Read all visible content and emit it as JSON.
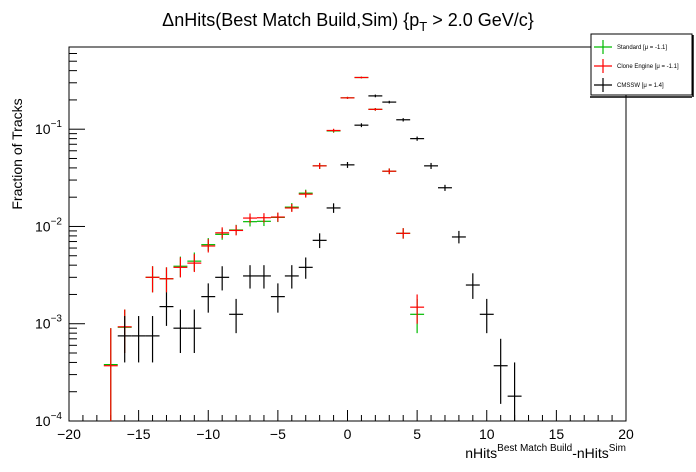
{
  "chart_data": {
    "type": "scatter",
    "title_parts": {
      "pre": "ΔnHits(Best Match Build,Sim) {p",
      "sub": "T",
      "post": " > 2.0 GeV/c}"
    },
    "ylabel": "Fraction of Tracks",
    "xlabel_parts": {
      "a": "nHits",
      "a_sup": "Best Match Build",
      "b": "-nHits",
      "b_sup": "Sim"
    },
    "xlim": [
      -20,
      20
    ],
    "ylim": [
      0.0001,
      0.7
    ],
    "y_scale": "log",
    "x_ticks": [
      -20,
      -15,
      -10,
      -5,
      0,
      5,
      10,
      15,
      20
    ],
    "x_tick_labels": [
      "−20",
      "−15",
      "−10",
      "−5",
      "0",
      "5",
      "10",
      "15",
      "20"
    ],
    "y_tick_labels": [
      {
        "value": 0.0001,
        "base": "10",
        "exp": "−4"
      },
      {
        "value": 0.001,
        "base": "10",
        "exp": "−3"
      },
      {
        "value": 0.01,
        "base": "10",
        "exp": "−2"
      },
      {
        "value": 0.1,
        "base": "10",
        "exp": "−1"
      }
    ],
    "grid": false,
    "legend_position": "top-right",
    "series": [
      {
        "name": "Standard",
        "legend_stat": "[μ = -1.1]",
        "color": "#00bb00",
        "points": [
          {
            "x": -17,
            "y": 0.00038,
            "lo": 0.0001,
            "hi": 0.0009
          },
          {
            "x": -16,
            "y": 0.00092,
            "lo": 0.0005,
            "hi": 0.0014
          },
          {
            "x": -14,
            "y": 0.003,
            "lo": 0.0021,
            "hi": 0.0039
          },
          {
            "x": -13,
            "y": 0.0029,
            "lo": 0.0021,
            "hi": 0.0038
          },
          {
            "x": -12,
            "y": 0.0039,
            "lo": 0.003,
            "hi": 0.0049
          },
          {
            "x": -11,
            "y": 0.0044,
            "lo": 0.0035,
            "hi": 0.0054
          },
          {
            "x": -10,
            "y": 0.0065,
            "lo": 0.0056,
            "hi": 0.0076
          },
          {
            "x": -9,
            "y": 0.0083,
            "lo": 0.0073,
            "hi": 0.0095
          },
          {
            "x": -8,
            "y": 0.0092,
            "lo": 0.0082,
            "hi": 0.0104
          },
          {
            "x": -7,
            "y": 0.0112,
            "lo": 0.01,
            "hi": 0.0126
          },
          {
            "x": -6,
            "y": 0.0113,
            "lo": 0.0101,
            "hi": 0.0127
          },
          {
            "x": -5,
            "y": 0.0124,
            "lo": 0.0111,
            "hi": 0.0138
          },
          {
            "x": -4,
            "y": 0.0158,
            "lo": 0.0144,
            "hi": 0.0174
          },
          {
            "x": -3,
            "y": 0.022,
            "lo": 0.0203,
            "hi": 0.0239
          },
          {
            "x": -2,
            "y": 0.042,
            "lo": 0.039,
            "hi": 0.045
          },
          {
            "x": -1,
            "y": 0.096,
            "lo": 0.092,
            "hi": 0.1
          },
          {
            "x": 0,
            "y": 0.21,
            "lo": 0.205,
            "hi": 0.215
          },
          {
            "x": 1,
            "y": 0.34,
            "lo": 0.333,
            "hi": 0.347
          },
          {
            "x": 2,
            "y": 0.16,
            "lo": 0.155,
            "hi": 0.165
          },
          {
            "x": 3,
            "y": 0.037,
            "lo": 0.0345,
            "hi": 0.0395
          },
          {
            "x": 4,
            "y": 0.0085,
            "lo": 0.0075,
            "hi": 0.0096
          },
          {
            "x": 5,
            "y": 0.00125,
            "lo": 0.0008,
            "hi": 0.0018
          }
        ]
      },
      {
        "name": "Clone Engine",
        "legend_stat": "[μ = -1.1]",
        "color": "#ff0000",
        "points": [
          {
            "x": -17,
            "y": 0.00037,
            "lo": 0.0001,
            "hi": 0.0009
          },
          {
            "x": -16,
            "y": 0.00093,
            "lo": 0.0005,
            "hi": 0.0014
          },
          {
            "x": -14,
            "y": 0.003,
            "lo": 0.0021,
            "hi": 0.0039
          },
          {
            "x": -13,
            "y": 0.0029,
            "lo": 0.0021,
            "hi": 0.0038
          },
          {
            "x": -12,
            "y": 0.0038,
            "lo": 0.003,
            "hi": 0.0048
          },
          {
            "x": -11,
            "y": 0.0042,
            "lo": 0.0034,
            "hi": 0.0052
          },
          {
            "x": -10,
            "y": 0.0063,
            "lo": 0.0054,
            "hi": 0.0074
          },
          {
            "x": -9,
            "y": 0.0086,
            "lo": 0.0076,
            "hi": 0.0098
          },
          {
            "x": -8,
            "y": 0.0091,
            "lo": 0.0081,
            "hi": 0.0103
          },
          {
            "x": -7,
            "y": 0.0122,
            "lo": 0.0109,
            "hi": 0.0136
          },
          {
            "x": -6,
            "y": 0.0123,
            "lo": 0.011,
            "hi": 0.0137
          },
          {
            "x": -5,
            "y": 0.0125,
            "lo": 0.0112,
            "hi": 0.0139
          },
          {
            "x": -4,
            "y": 0.0155,
            "lo": 0.0141,
            "hi": 0.017
          },
          {
            "x": -3,
            "y": 0.0215,
            "lo": 0.0198,
            "hi": 0.0234
          },
          {
            "x": -2,
            "y": 0.042,
            "lo": 0.039,
            "hi": 0.045
          },
          {
            "x": -1,
            "y": 0.097,
            "lo": 0.093,
            "hi": 0.101
          },
          {
            "x": 0,
            "y": 0.21,
            "lo": 0.205,
            "hi": 0.215
          },
          {
            "x": 1,
            "y": 0.34,
            "lo": 0.333,
            "hi": 0.347
          },
          {
            "x": 2,
            "y": 0.16,
            "lo": 0.155,
            "hi": 0.165
          },
          {
            "x": 3,
            "y": 0.037,
            "lo": 0.0345,
            "hi": 0.0395
          },
          {
            "x": 4,
            "y": 0.0085,
            "lo": 0.0075,
            "hi": 0.0096
          },
          {
            "x": 5,
            "y": 0.00148,
            "lo": 0.001,
            "hi": 0.002
          }
        ]
      },
      {
        "name": "CMSSW",
        "legend_stat": "[μ = 1.4]",
        "color": "#000000",
        "points": [
          {
            "x": -16,
            "y": 0.00075,
            "lo": 0.0004,
            "hi": 0.0012
          },
          {
            "x": -15,
            "y": 0.00075,
            "lo": 0.0004,
            "hi": 0.0012
          },
          {
            "x": -14,
            "y": 0.00075,
            "lo": 0.0004,
            "hi": 0.0012
          },
          {
            "x": -13,
            "y": 0.0015,
            "lo": 0.00095,
            "hi": 0.0021
          },
          {
            "x": -12,
            "y": 0.0009,
            "lo": 0.0005,
            "hi": 0.0014
          },
          {
            "x": -11,
            "y": 0.0009,
            "lo": 0.0005,
            "hi": 0.0014
          },
          {
            "x": -10,
            "y": 0.0019,
            "lo": 0.0013,
            "hi": 0.0026
          },
          {
            "x": -9,
            "y": 0.003,
            "lo": 0.0022,
            "hi": 0.0039
          },
          {
            "x": -8,
            "y": 0.00125,
            "lo": 0.0008,
            "hi": 0.0018
          },
          {
            "x": -7,
            "y": 0.0031,
            "lo": 0.0023,
            "hi": 0.004
          },
          {
            "x": -6,
            "y": 0.0031,
            "lo": 0.0023,
            "hi": 0.004
          },
          {
            "x": -5,
            "y": 0.0019,
            "lo": 0.0013,
            "hi": 0.0026
          },
          {
            "x": -4,
            "y": 0.0031,
            "lo": 0.0023,
            "hi": 0.004
          },
          {
            "x": -3,
            "y": 0.0038,
            "lo": 0.0029,
            "hi": 0.0048
          },
          {
            "x": -2,
            "y": 0.0072,
            "lo": 0.006,
            "hi": 0.0085
          },
          {
            "x": -1,
            "y": 0.0155,
            "lo": 0.0138,
            "hi": 0.0173
          },
          {
            "x": 0,
            "y": 0.043,
            "lo": 0.04,
            "hi": 0.046
          },
          {
            "x": 1,
            "y": 0.11,
            "lo": 0.105,
            "hi": 0.115
          },
          {
            "x": 2,
            "y": 0.22,
            "lo": 0.213,
            "hi": 0.227
          },
          {
            "x": 3,
            "y": 0.19,
            "lo": 0.184,
            "hi": 0.196
          },
          {
            "x": 4,
            "y": 0.125,
            "lo": 0.12,
            "hi": 0.13
          },
          {
            "x": 5,
            "y": 0.08,
            "lo": 0.076,
            "hi": 0.084
          },
          {
            "x": 6,
            "y": 0.042,
            "lo": 0.039,
            "hi": 0.045
          },
          {
            "x": 7,
            "y": 0.025,
            "lo": 0.0232,
            "hi": 0.0268
          },
          {
            "x": 8,
            "y": 0.0078,
            "lo": 0.0067,
            "hi": 0.009
          },
          {
            "x": 9,
            "y": 0.0025,
            "lo": 0.0018,
            "hi": 0.0033
          },
          {
            "x": 10,
            "y": 0.00125,
            "lo": 0.0008,
            "hi": 0.0018
          },
          {
            "x": 11,
            "y": 0.00037,
            "lo": 0.00015,
            "hi": 0.0007
          },
          {
            "x": 12,
            "y": 0.00018,
            "lo": 0.0001,
            "hi": 0.0004
          }
        ]
      }
    ]
  }
}
